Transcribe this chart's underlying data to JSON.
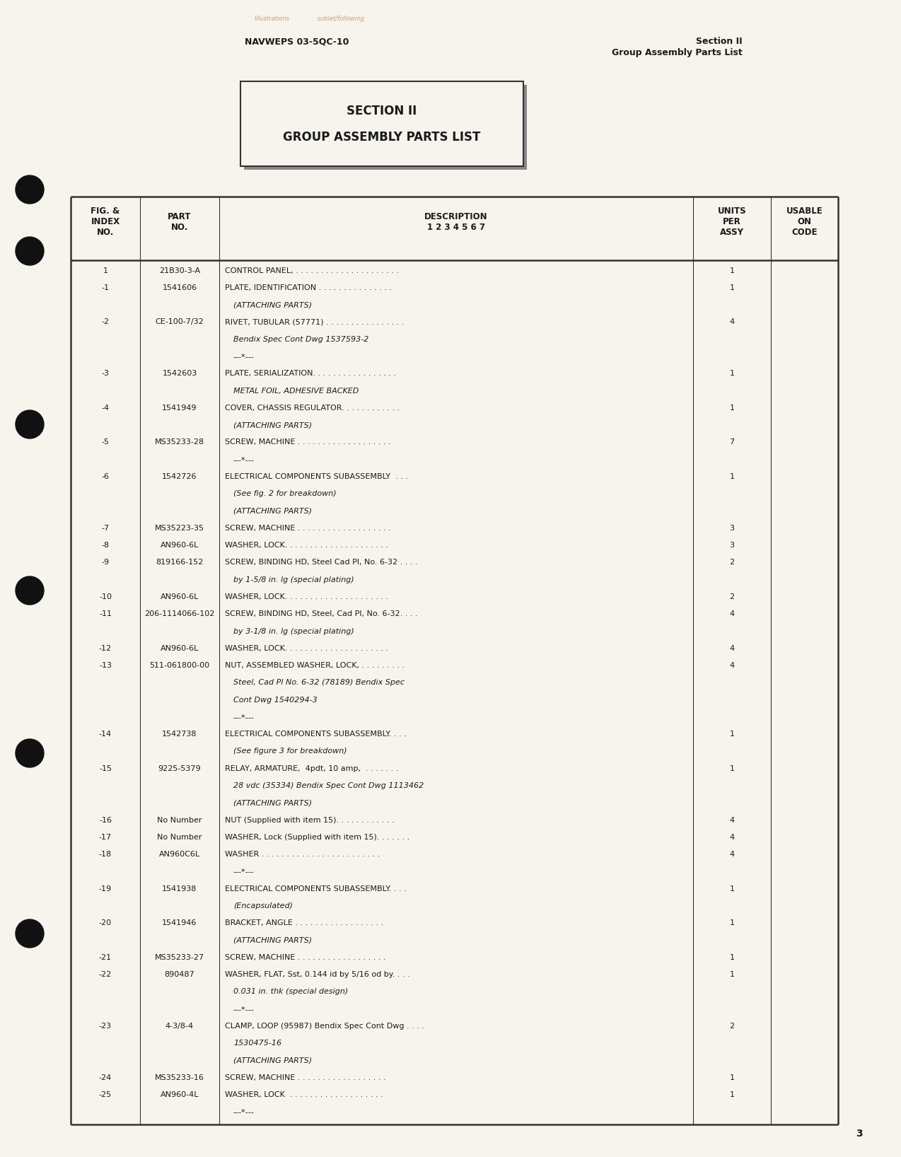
{
  "page_color": "#f7f4ed",
  "text_color": "#1a1a1a",
  "header_left": "NAVWEPS 03-5QC-10",
  "header_right_line1": "Section II",
  "header_right_line2": "Group Assembly Parts List",
  "section_title_line1": "SECTION II",
  "section_title_line2": "GROUP ASSEMBLY PARTS LIST",
  "page_number": "3",
  "rows": [
    {
      "fig": "1",
      "part": "21B30-3-A",
      "desc": [
        [
          "CONTROL PANEL, . . . . . . . . . . . . . . . . . . . . .",
          false
        ]
      ],
      "units": "1"
    },
    {
      "fig": "-1",
      "part": "1541606",
      "desc": [
        [
          "PLATE, IDENTIFICATION . . . . . . . . . . . . . . .",
          false
        ],
        [
          "    (ATTACHING PARTS)",
          true
        ]
      ],
      "units": "1"
    },
    {
      "fig": "-2",
      "part": "CE-100-7/32",
      "desc": [
        [
          "RIVET, TUBULAR (57771) . . . . . . . . . . . . . . . .",
          false
        ],
        [
          "    Bendix Spec Cont Dwg 1537593-2",
          true
        ],
        [
          "    ---*---",
          true
        ]
      ],
      "units": "4"
    },
    {
      "fig": "-3",
      "part": "1542603",
      "desc": [
        [
          "PLATE, SERIALIZATION. . . . . . . . . . . . . . . . .",
          false
        ],
        [
          "    METAL FOIL, ADHESIVE BACKED",
          true
        ]
      ],
      "units": "1"
    },
    {
      "fig": "-4",
      "part": "1541949",
      "desc": [
        [
          "COVER, CHASSIS REGULATOR. . . . . . . . . . . .",
          false
        ],
        [
          "    (ATTACHING PARTS)",
          true
        ]
      ],
      "units": "1"
    },
    {
      "fig": "-5",
      "part": "MS35233-28",
      "desc": [
        [
          "SCREW, MACHINE . . . . . . . . . . . . . . . . . . .",
          false
        ],
        [
          "    ---*---",
          true
        ]
      ],
      "units": "7"
    },
    {
      "fig": "-6",
      "part": "1542726",
      "desc": [
        [
          "ELECTRICAL COMPONENTS SUBASSEMBLY  . . .",
          false
        ],
        [
          "    (See fig. 2 for breakdown)",
          true
        ],
        [
          "    (ATTACHING PARTS)",
          true
        ]
      ],
      "units": "1"
    },
    {
      "fig": "-7",
      "part": "MS35223-35",
      "desc": [
        [
          "SCREW, MACHINE . . . . . . . . . . . . . . . . . . .",
          false
        ]
      ],
      "units": "3"
    },
    {
      "fig": "-8",
      "part": "AN960-6L",
      "desc": [
        [
          "WASHER, LOCK. . . . . . . . . . . . . . . . . . . . .",
          false
        ]
      ],
      "units": "3"
    },
    {
      "fig": "-9",
      "part": "819166-152",
      "desc": [
        [
          "SCREW, BINDING HD, Steel Cad Pl, No. 6-32 . . . .",
          false
        ],
        [
          "    by 1-5/8 in. lg (special plating)",
          true
        ]
      ],
      "units": "2"
    },
    {
      "fig": "-10",
      "part": "AN960-6L",
      "desc": [
        [
          "WASHER, LOCK. . . . . . . . . . . . . . . . . . . . .",
          false
        ]
      ],
      "units": "2"
    },
    {
      "fig": "-11",
      "part": "206-1114066-102",
      "desc": [
        [
          "SCREW, BINDING HD, Steel, Cad Pl, No. 6-32. . . .",
          false
        ],
        [
          "    by 3-1/8 in. lg (special plating)",
          true
        ]
      ],
      "units": "4"
    },
    {
      "fig": "-12",
      "part": "AN960-6L",
      "desc": [
        [
          "WASHER, LOCK. . . . . . . . . . . . . . . . . . . . .",
          false
        ]
      ],
      "units": "4"
    },
    {
      "fig": "-13",
      "part": "511-061800-00",
      "desc": [
        [
          "NUT, ASSEMBLED WASHER, LOCK, . . . . . . . . .",
          false
        ],
        [
          "    Steel, Cad Pl No. 6-32 (78189) Bendix Spec",
          true
        ],
        [
          "    Cont Dwg 1540294-3",
          true
        ],
        [
          "    ---*---",
          true
        ]
      ],
      "units": "4"
    },
    {
      "fig": "-14",
      "part": "1542738",
      "desc": [
        [
          "ELECTRICAL COMPONENTS SUBASSEMBLY. . . .",
          false
        ],
        [
          "    (See figure 3 for breakdown)",
          true
        ]
      ],
      "units": "1"
    },
    {
      "fig": "-15",
      "part": "9225-5379",
      "desc": [
        [
          "RELAY, ARMATURE,  4pdt, 10 amp,  . . . . . . .",
          false
        ],
        [
          "    28 vdc (35334) Bendix Spec Cont Dwg 1113462",
          true
        ],
        [
          "    (ATTACHING PARTS)",
          true
        ]
      ],
      "units": "1"
    },
    {
      "fig": "-16",
      "part": "No Number",
      "desc": [
        [
          "NUT (Supplied with item 15). . . . . . . . . . . .",
          false
        ]
      ],
      "units": "4"
    },
    {
      "fig": "-17",
      "part": "No Number",
      "desc": [
        [
          "WASHER, Lock (Supplied with item 15). . . . . . .",
          false
        ]
      ],
      "units": "4"
    },
    {
      "fig": "-18",
      "part": "AN960C6L",
      "desc": [
        [
          "WASHER . . . . . . . . . . . . . . . . . . . . . . . .",
          false
        ],
        [
          "    ---*---",
          true
        ]
      ],
      "units": "4"
    },
    {
      "fig": "-19",
      "part": "1541938",
      "desc": [
        [
          "ELECTRICAL COMPONENTS SUBASSEMBLY. . . .",
          false
        ],
        [
          "    (Encapsulated)",
          true
        ]
      ],
      "units": "1"
    },
    {
      "fig": "-20",
      "part": "1541946",
      "desc": [
        [
          "BRACKET, ANGLE . . . . . . . . . . . . . . . . . .",
          false
        ],
        [
          "    (ATTACHING PARTS)",
          true
        ]
      ],
      "units": "1"
    },
    {
      "fig": "-21",
      "part": "MS35233-27",
      "desc": [
        [
          "SCREW, MACHINE . . . . . . . . . . . . . . . . . .",
          false
        ]
      ],
      "units": "1"
    },
    {
      "fig": "-22",
      "part": "890487",
      "desc": [
        [
          "WASHER, FLAT, Sst, 0.144 id by 5/16 od by. . . .",
          false
        ],
        [
          "    0.031 in. thk (special design)",
          true
        ],
        [
          "    ---*---",
          true
        ]
      ],
      "units": "1"
    },
    {
      "fig": "-23",
      "part": "4-3/8-4",
      "desc": [
        [
          "CLAMP, LOOP (95987) Bendix Spec Cont Dwg . . . .",
          false
        ],
        [
          "    1530475-16",
          true
        ],
        [
          "    (ATTACHING PARTS)",
          true
        ]
      ],
      "units": "2"
    },
    {
      "fig": "-24",
      "part": "MS35233-16",
      "desc": [
        [
          "SCREW, MACHINE . . . . . . . . . . . . . . . . . .",
          false
        ]
      ],
      "units": "1"
    },
    {
      "fig": "-25",
      "part": "AN960-4L",
      "desc": [
        [
          "WASHER, LOCK  . . . . . . . . . . . . . . . . . . .",
          false
        ],
        [
          "    ---*---",
          true
        ]
      ],
      "units": "1"
    }
  ]
}
